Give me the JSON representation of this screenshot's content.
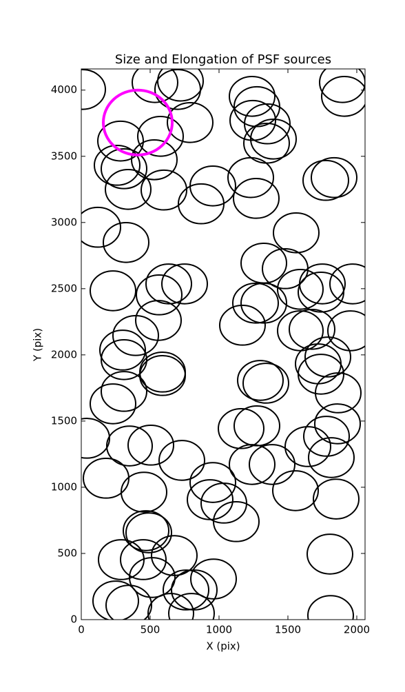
{
  "chart_data": {
    "type": "ellipse",
    "title": "Size and Elongation of PSF sources",
    "xlabel": "X (pix)",
    "ylabel": "Y (pix)",
    "xlim": [
      0,
      2060
    ],
    "ylim": [
      0,
      4160
    ],
    "xticks": [
      0,
      500,
      1000,
      1500,
      2000
    ],
    "yticks": [
      0,
      500,
      1000,
      1500,
      2000,
      2500,
      3000,
      3500,
      4000
    ],
    "series": [
      {
        "color": "#000000",
        "width": 330,
        "height": 300,
        "line_width": 2,
        "x": [
          10,
          535,
          720,
          700,
          1895,
          1910,
          1240,
          1275,
          1245,
          1350,
          790,
          575,
          285,
          1395,
          1345,
          530,
          260,
          310,
          340,
          600,
          955,
          870,
          1230,
          1270,
          1775,
          1835,
          120,
          325,
          1560,
          1325,
          1480,
          230,
          635,
          750,
          565,
          1590,
          1750,
          1740,
          1970,
          1265,
          1325,
          560,
          395,
          1170,
          1590,
          1675,
          1955,
          300,
          310,
          1720,
          1790,
          590,
          590,
          1740,
          1300,
          1340,
          310,
          230,
          1865,
          40,
          350,
          505,
          1160,
          1275,
          1860,
          1780,
          1645,
          1815,
          730,
          180,
          455,
          955,
          1240,
          1385,
          935,
          1035,
          1125,
          1555,
          1850,
          470,
          490,
          675,
          290,
          450,
          515,
          960,
          760,
          820,
          250,
          345,
          650,
          800,
          1805,
          1810
        ],
        "y": [
          4005,
          4057,
          4068,
          4005,
          4057,
          3953,
          3953,
          3875,
          3771,
          3745,
          3755,
          3651,
          3615,
          3630,
          3599,
          3474,
          3432,
          3406,
          3250,
          3245,
          3276,
          3141,
          3339,
          3182,
          3318,
          3339,
          2964,
          2849,
          2922,
          2693,
          2651,
          2484,
          2536,
          2536,
          2453,
          2495,
          2536,
          2474,
          2536,
          2391,
          2391,
          2260,
          2146,
          2224,
          2182,
          2193,
          2182,
          2036,
          1964,
          1932,
          1984,
          1870,
          1844,
          1854,
          1807,
          1786,
          1724,
          1630,
          1713,
          1370,
          1312,
          1318,
          1443,
          1464,
          1479,
          1385,
          1307,
          1224,
          1203,
          1068,
          963,
          1036,
          1172,
          1172,
          906,
          880,
          740,
          974,
          911,
          672,
          656,
          484,
          453,
          453,
          318,
          307,
          224,
          224,
          141,
          109,
          47,
          47,
          495,
          31
        ]
      },
      {
        "color": "#ff00ff",
        "width": 500,
        "height": 490,
        "line_width": 4,
        "x": [
          410
        ],
        "y": [
          3755
        ]
      }
    ]
  }
}
